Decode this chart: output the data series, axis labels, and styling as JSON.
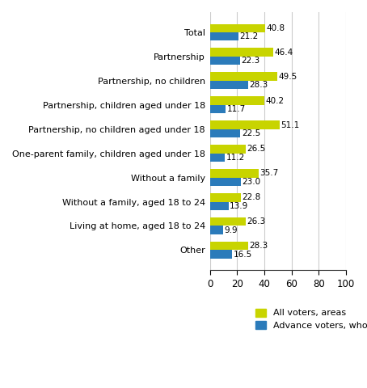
{
  "categories": [
    "Total",
    "Partnership",
    "Partnership, no children",
    "Partnership, children aged under 18",
    "Partnership, no children aged under 18",
    "One-parent family, children aged under 18",
    "Without a family",
    "Without a family, aged 18 to 24",
    "Living at home, aged 18 to 24",
    "Other"
  ],
  "all_voters": [
    40.8,
    46.4,
    49.5,
    40.2,
    51.1,
    26.5,
    35.7,
    22.8,
    26.3,
    28.3
  ],
  "advance_voters": [
    21.2,
    22.3,
    28.3,
    11.7,
    22.5,
    11.2,
    23.0,
    13.9,
    9.9,
    16.5
  ],
  "color_all": "#c8d400",
  "color_advance": "#2b7bba",
  "xlim": [
    0,
    100
  ],
  "xticks": [
    0,
    20,
    40,
    60,
    80,
    100
  ],
  "legend_all": "All voters, areas",
  "legend_advance": "Advance voters, whole country",
  "bar_height": 0.35,
  "figure_bg": "#ffffff"
}
